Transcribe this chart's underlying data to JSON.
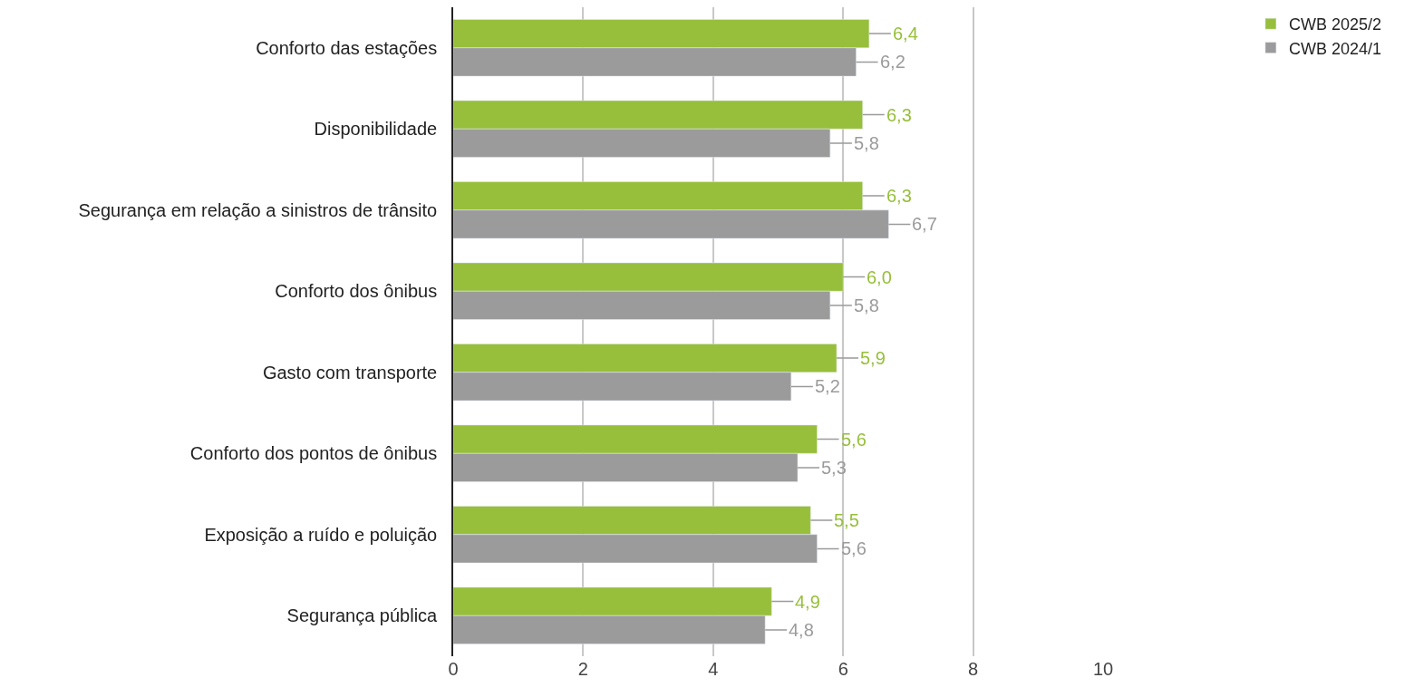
{
  "chart_data": {
    "type": "bar",
    "orientation": "horizontal",
    "categories": [
      "Conforto das estações",
      "Disponibilidade",
      "Segurança em relação a sinistros de trânsito",
      "Conforto dos ônibus",
      "Gasto com transporte",
      "Conforto dos pontos de ônibus",
      "Exposição a ruído e poluição",
      "Segurança pública"
    ],
    "series": [
      {
        "name": "CWB 2025/2",
        "color": "#97bf3b",
        "values": [
          6.4,
          6.3,
          6.3,
          6.0,
          5.9,
          5.6,
          5.5,
          4.9
        ],
        "value_labels": [
          "6,4",
          "6,3",
          "6,3",
          "6,0",
          "5,9",
          "5,6",
          "5,5",
          "4,9"
        ]
      },
      {
        "name": "CWB 2024/1",
        "color": "#9b9b9b",
        "values": [
          6.2,
          5.8,
          6.7,
          5.8,
          5.2,
          5.3,
          5.6,
          4.8
        ],
        "value_labels": [
          "6,2",
          "5,8",
          "6,7",
          "5,8",
          "5,2",
          "5,3",
          "5,6",
          "4,8"
        ]
      }
    ],
    "xlim": [
      0,
      10
    ],
    "xticks": [
      0,
      2,
      4,
      6,
      8,
      10
    ],
    "grid": "x",
    "legend": "top right"
  }
}
